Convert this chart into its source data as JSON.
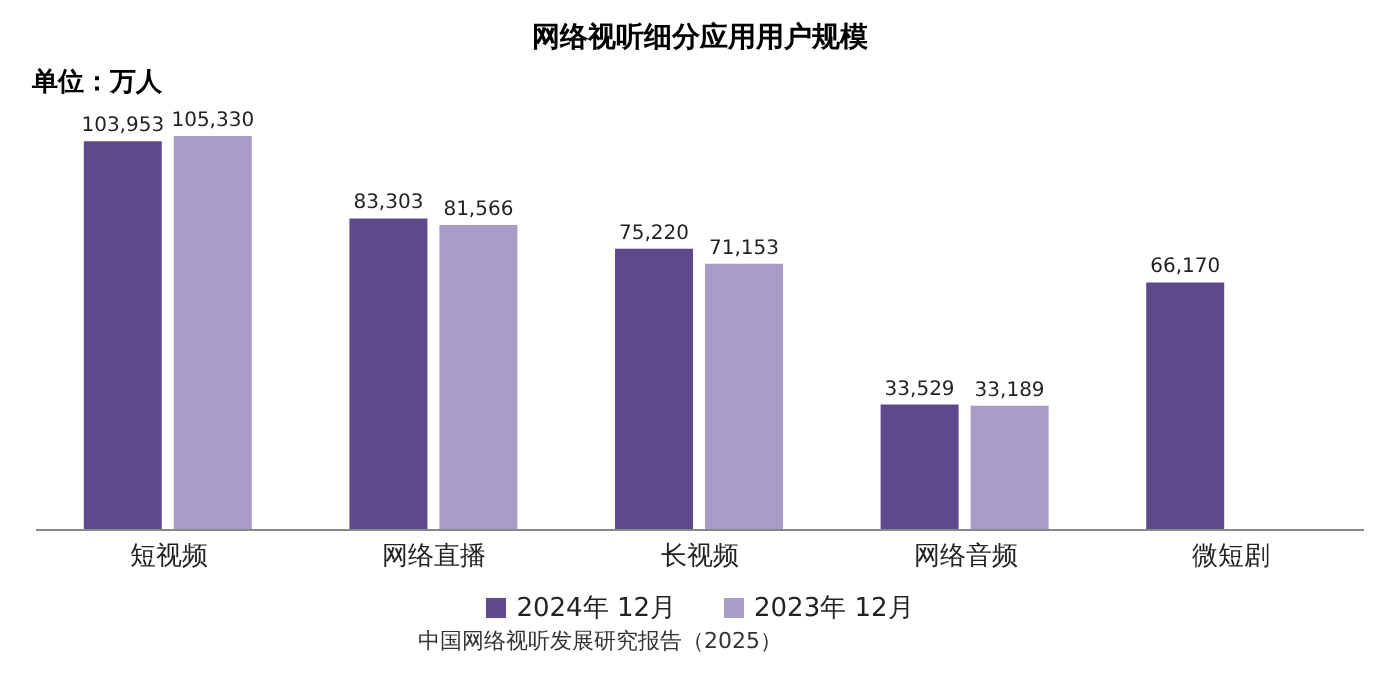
{
  "chart_data": {
    "type": "bar",
    "title": "网络视听细分应用用户规模",
    "categories": [
      "短视频",
      "网络直播",
      "长视频",
      "网络音频",
      "微短剧"
    ],
    "series": [
      {
        "name": "2024年 12月",
        "color": "#5e4a8a",
        "values": [
          103953,
          83303,
          75220,
          33529,
          66170
        ],
        "value_labels": [
          "103,953",
          "83,303",
          "75,220",
          "33,529",
          "66,170"
        ]
      },
      {
        "name": "2023年 12月",
        "color": "#a99cc6",
        "values": [
          105330,
          81566,
          71153,
          33189,
          null
        ],
        "value_labels": [
          "105,330",
          "81,566",
          "71,153",
          "33,189",
          null
        ]
      }
    ],
    "legend": "bottom",
    "annotations": [
      "单位：万人",
      "中国网络视听发展研究报告（2025）"
    ]
  }
}
